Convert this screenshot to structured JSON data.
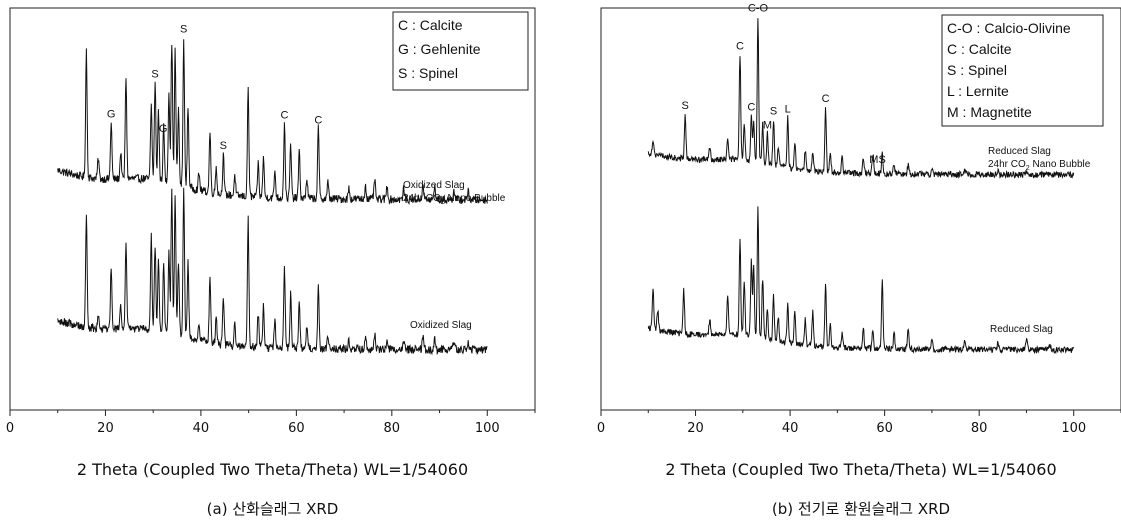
{
  "chart_data": [
    {
      "type": "line",
      "id": "a",
      "caption": "(a) 산화슬래그 XRD",
      "xlabel": "2 Theta (Coupled Two Theta/Theta) WL=1/54060",
      "ylabel": "",
      "xlim": [
        0,
        110
      ],
      "x_ticks": [
        0,
        20,
        40,
        60,
        80,
        100
      ],
      "legend": [
        "C : Calcite",
        "G : Gehlenite",
        "S : Spinel"
      ],
      "legend_position": "top-right",
      "series": [
        {
          "label_lines": [
            "Oxidized Slag",
            "24hr CO",
            "2",
            " Nano Bubble"
          ],
          "offset": 1,
          "peaks": [
            [
              16,
              0.95
            ],
            [
              18.5,
              0.15
            ],
            [
              21.2,
              0.42
            ],
            [
              23.2,
              0.2
            ],
            [
              24.3,
              0.75
            ],
            [
              29.6,
              0.55
            ],
            [
              30.4,
              0.72
            ],
            [
              31.1,
              0.52
            ],
            [
              32.2,
              0.4
            ],
            [
              33.3,
              0.68
            ],
            [
              33.9,
              1.05
            ],
            [
              34.6,
              1.0
            ],
            [
              35.3,
              0.55
            ],
            [
              36.4,
              1.1
            ],
            [
              37.3,
              0.6
            ],
            [
              39.6,
              0.12
            ],
            [
              41.9,
              0.45
            ],
            [
              43.2,
              0.2
            ],
            [
              44.7,
              0.3
            ],
            [
              47.1,
              0.15
            ],
            [
              49.9,
              0.8
            ],
            [
              52.0,
              0.25
            ],
            [
              53.1,
              0.3
            ],
            [
              55.5,
              0.2
            ],
            [
              57.5,
              0.55
            ],
            [
              58.8,
              0.4
            ],
            [
              60.6,
              0.35
            ],
            [
              62.2,
              0.15
            ],
            [
              64.6,
              0.52
            ],
            [
              66.6,
              0.12
            ],
            [
              71.0,
              0.08
            ],
            [
              74.5,
              0.1
            ],
            [
              76.4,
              0.15
            ],
            [
              79.0,
              0.1
            ],
            [
              82.5,
              0.08
            ],
            [
              86.5,
              0.12
            ],
            [
              89.0,
              0.1
            ],
            [
              93.0,
              0.08
            ],
            [
              96.0,
              0.06
            ]
          ],
          "annotations": [
            [
              "G",
              21.2
            ],
            [
              "S",
              30.4
            ],
            [
              "G",
              32.1
            ],
            [
              "S",
              36.4
            ],
            [
              "S",
              44.7
            ],
            [
              "C",
              57.5
            ],
            [
              "C",
              64.6
            ]
          ]
        },
        {
          "label_lines": [
            "Oxidized Slag"
          ],
          "offset": 0,
          "peaks": [
            [
              16,
              0.85
            ],
            [
              18.5,
              0.12
            ],
            [
              21.2,
              0.45
            ],
            [
              23.2,
              0.18
            ],
            [
              24.3,
              0.62
            ],
            [
              29.6,
              0.7
            ],
            [
              30.4,
              0.62
            ],
            [
              31.1,
              0.55
            ],
            [
              32.2,
              0.5
            ],
            [
              33.3,
              0.6
            ],
            [
              33.9,
              1.05
            ],
            [
              34.6,
              1.05
            ],
            [
              35.3,
              0.55
            ],
            [
              36.4,
              1.1
            ],
            [
              37.3,
              0.55
            ],
            [
              39.6,
              0.12
            ],
            [
              41.9,
              0.48
            ],
            [
              43.2,
              0.2
            ],
            [
              44.7,
              0.35
            ],
            [
              47.1,
              0.15
            ],
            [
              49.9,
              0.95
            ],
            [
              52.0,
              0.25
            ],
            [
              53.1,
              0.3
            ],
            [
              55.5,
              0.2
            ],
            [
              57.5,
              0.6
            ],
            [
              58.8,
              0.4
            ],
            [
              60.6,
              0.35
            ],
            [
              62.2,
              0.15
            ],
            [
              64.6,
              0.45
            ],
            [
              66.6,
              0.1
            ],
            [
              71.0,
              0.07
            ],
            [
              74.5,
              0.08
            ],
            [
              76.4,
              0.12
            ],
            [
              79.0,
              0.08
            ],
            [
              82.5,
              0.07
            ],
            [
              86.5,
              0.1
            ],
            [
              89.0,
              0.08
            ],
            [
              93.0,
              0.06
            ],
            [
              96.0,
              0.05
            ]
          ],
          "annotations": []
        }
      ]
    },
    {
      "type": "line",
      "id": "b",
      "caption": "(b) 전기로 환원슬래그 XRD",
      "xlabel": "2 Theta (Coupled Two Theta/Theta) WL=1/54060",
      "ylabel": "",
      "xlim": [
        0,
        110
      ],
      "x_ticks": [
        0,
        20,
        40,
        60,
        80,
        100
      ],
      "legend": [
        "C-O : Calcio-Olivine",
        "C : Calcite",
        "S : Spinel",
        "L : Lernite",
        "M : Magnetite"
      ],
      "legend_position": "top-right",
      "series": [
        {
          "label_lines": [
            "Reduced Slag",
            "24hr CO",
            "2",
            " Nano Bubble"
          ],
          "offset": 1,
          "peaks": [
            [
              11,
              0.15
            ],
            [
              17.8,
              0.45
            ],
            [
              23,
              0.12
            ],
            [
              26.8,
              0.2
            ],
            [
              29.4,
              1.05
            ],
            [
              30.3,
              0.35
            ],
            [
              31.8,
              0.45
            ],
            [
              32.3,
              0.4
            ],
            [
              33.2,
              1.45
            ],
            [
              34.2,
              0.4
            ],
            [
              35.2,
              0.3
            ],
            [
              36.5,
              0.45
            ],
            [
              37.5,
              0.2
            ],
            [
              39.5,
              0.5
            ],
            [
              41.0,
              0.25
            ],
            [
              43.2,
              0.2
            ],
            [
              44.8,
              0.2
            ],
            [
              47.5,
              0.65
            ],
            [
              48.5,
              0.2
            ],
            [
              51.0,
              0.15
            ],
            [
              55.5,
              0.15
            ],
            [
              57.5,
              0.2
            ],
            [
              59.5,
              0.2
            ],
            [
              62.0,
              0.1
            ],
            [
              65.0,
              0.1
            ],
            [
              70.0,
              0.07
            ],
            [
              77.0,
              0.05
            ],
            [
              84.0,
              0.05
            ],
            [
              90.0,
              0.04
            ]
          ],
          "annotations": [
            [
              "S",
              17.8
            ],
            [
              "C",
              29.4
            ],
            [
              "C",
              31.8
            ],
            [
              "C-O",
              33.2
            ],
            [
              "M",
              35.2
            ],
            [
              "S",
              36.5
            ],
            [
              "L",
              39.5
            ],
            [
              "C",
              47.5
            ],
            [
              "MS",
              58.5
            ]
          ]
        },
        {
          "label_lines": [
            "Reduced Slag"
          ],
          "offset": 0,
          "peaks": [
            [
              11,
              0.4
            ],
            [
              12,
              0.2
            ],
            [
              17.5,
              0.45
            ],
            [
              23,
              0.15
            ],
            [
              26.8,
              0.4
            ],
            [
              29.4,
              0.95
            ],
            [
              30.3,
              0.55
            ],
            [
              31.8,
              0.75
            ],
            [
              32.3,
              0.7
            ],
            [
              33.2,
              1.3
            ],
            [
              34.2,
              0.6
            ],
            [
              35.2,
              0.3
            ],
            [
              36.5,
              0.45
            ],
            [
              37.5,
              0.25
            ],
            [
              39.5,
              0.4
            ],
            [
              41.0,
              0.3
            ],
            [
              43.2,
              0.25
            ],
            [
              44.8,
              0.35
            ],
            [
              47.5,
              0.65
            ],
            [
              48.5,
              0.25
            ],
            [
              51.0,
              0.15
            ],
            [
              55.5,
              0.2
            ],
            [
              57.5,
              0.2
            ],
            [
              59.5,
              0.7
            ],
            [
              62.0,
              0.15
            ],
            [
              65.0,
              0.2
            ],
            [
              70.0,
              0.1
            ],
            [
              77.0,
              0.08
            ],
            [
              84.0,
              0.07
            ],
            [
              90.0,
              0.12
            ],
            [
              95.0,
              0.05
            ]
          ],
          "annotations": []
        }
      ]
    }
  ]
}
